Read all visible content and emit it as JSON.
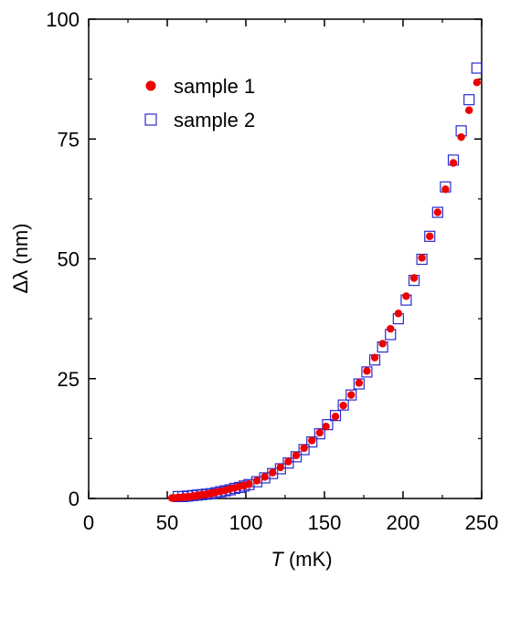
{
  "chart_data": {
    "type": "scatter",
    "xlabel_var": "T",
    "xlabel_unit": " (mK)",
    "ylabel": "Δλ (nm)",
    "xlim": [
      0,
      250
    ],
    "ylim": [
      0,
      100
    ],
    "xticks": [
      0,
      50,
      100,
      150,
      200,
      250
    ],
    "yticks": [
      0,
      25,
      50,
      75,
      100
    ],
    "grid": false,
    "legend_position": "top-left",
    "series": [
      {
        "name": "sample 1",
        "marker": "filled-circle",
        "color": "#ee0000",
        "x": [
          53,
          55,
          57,
          59,
          61,
          63,
          65,
          67,
          69,
          71,
          73,
          75,
          77,
          79,
          81,
          84,
          87,
          90,
          93,
          96,
          99,
          102,
          107,
          112,
          117,
          122,
          127,
          132,
          137,
          142,
          147,
          151,
          157,
          162,
          167,
          172,
          177,
          182,
          187,
          192,
          197,
          202,
          207,
          212,
          217,
          222,
          227,
          232,
          237,
          242,
          247
        ],
        "y": [
          0.1,
          0.1,
          0.2,
          0.2,
          0.3,
          0.3,
          0.4,
          0.5,
          0.6,
          0.7,
          0.8,
          0.9,
          1.0,
          1.1,
          1.3,
          1.5,
          1.7,
          2.0,
          2.2,
          2.5,
          2.7,
          3.0,
          3.7,
          4.5,
          5.4,
          6.5,
          7.7,
          9.0,
          10.5,
          12.1,
          13.7,
          15.0,
          17.1,
          19.4,
          21.6,
          24.1,
          26.6,
          29.4,
          32.3,
          35.4,
          38.6,
          42.2,
          46.0,
          50.2,
          54.7,
          59.7,
          64.5,
          70.0,
          75.4,
          81.0,
          86.8
        ]
      },
      {
        "name": "sample 2",
        "marker": "open-square",
        "color": "#2b2bcc",
        "x": [
          57,
          60,
          63,
          66,
          69,
          72,
          75,
          78,
          81,
          84,
          87,
          90,
          93,
          96,
          99,
          102,
          107,
          112,
          117,
          122,
          127,
          132,
          137,
          142,
          147,
          152,
          157,
          162,
          167,
          172,
          177,
          182,
          187,
          192,
          197,
          202,
          207,
          212,
          217,
          222,
          227,
          232,
          237,
          242,
          247
        ],
        "y": [
          0.4,
          0.4,
          0.5,
          0.6,
          0.7,
          0.8,
          0.9,
          1.0,
          1.2,
          1.4,
          1.6,
          1.8,
          2.1,
          2.3,
          2.6,
          2.9,
          3.5,
          4.3,
          5.2,
          6.2,
          7.4,
          8.7,
          10.2,
          11.8,
          13.5,
          15.4,
          17.3,
          19.5,
          21.6,
          23.9,
          26.4,
          28.9,
          31.6,
          34.2,
          37.5,
          41.4,
          45.5,
          49.9,
          54.7,
          59.7,
          65.0,
          70.6,
          76.7,
          83.2,
          89.8
        ]
      }
    ]
  }
}
